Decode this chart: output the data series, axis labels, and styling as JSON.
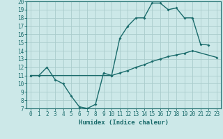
{
  "title": "",
  "xlabel": "Humidex (Indice chaleur)",
  "background_color": "#cce8e8",
  "grid_color": "#aacccc",
  "line_color": "#1a6b6b",
  "xlim": [
    -0.5,
    23.5
  ],
  "ylim": [
    7,
    20
  ],
  "xticks": [
    0,
    1,
    2,
    3,
    4,
    5,
    6,
    7,
    8,
    9,
    10,
    11,
    12,
    13,
    14,
    15,
    16,
    17,
    18,
    19,
    20,
    21,
    22,
    23
  ],
  "yticks": [
    7,
    8,
    9,
    10,
    11,
    12,
    13,
    14,
    15,
    16,
    17,
    18,
    19,
    20
  ],
  "line1_x": [
    0,
    1,
    2,
    3,
    4,
    5,
    6,
    7,
    8,
    9,
    10,
    11,
    12,
    13,
    14,
    15,
    16,
    17,
    18,
    19,
    20,
    21,
    22
  ],
  "line1_y": [
    11,
    11,
    12,
    10.5,
    10,
    8.5,
    7.2,
    7,
    7.5,
    11.3,
    11,
    15.5,
    17,
    18,
    18,
    19.8,
    19.8,
    19,
    19.2,
    18,
    18,
    14.8,
    14.7
  ],
  "line2_x": [
    0,
    10,
    11,
    12,
    13,
    14,
    15,
    16,
    17,
    18,
    19,
    20,
    23
  ],
  "line2_y": [
    11,
    11,
    11.3,
    11.6,
    12,
    12.3,
    12.7,
    13,
    13.3,
    13.5,
    13.7,
    14,
    13.2
  ]
}
